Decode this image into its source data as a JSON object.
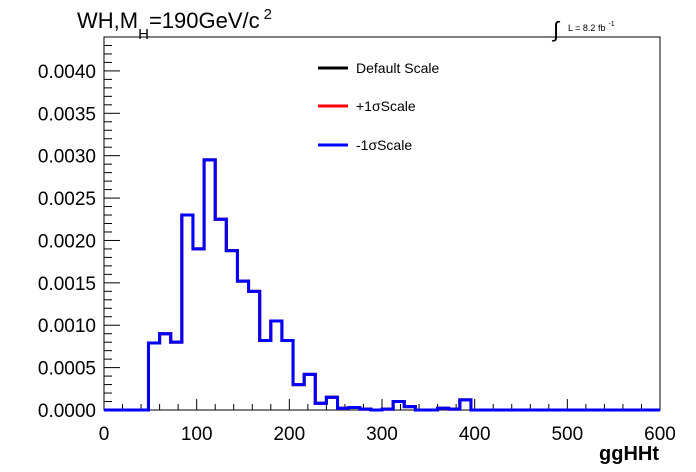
{
  "chart_data": {
    "type": "line",
    "title": "WH,M_H=190GeV/c^2",
    "title_parts": {
      "main": "WH,M",
      "sub": "H",
      "rest": "=190GeV/c",
      "sup": "2"
    },
    "lumi_label": {
      "integral": "∫",
      "text": "L = 8.2 fb",
      "sup": "-1"
    },
    "xlabel": "ggHHt",
    "ylabel": "",
    "xlim": [
      0,
      600
    ],
    "ylim": [
      0,
      0.0044
    ],
    "xticks": [
      0,
      100,
      200,
      300,
      400,
      500,
      600
    ],
    "xtick_labels": [
      "0",
      "100",
      "200",
      "300",
      "400",
      "500",
      "600"
    ],
    "yticks": [
      0,
      0.0005,
      0.001,
      0.0015,
      0.002,
      0.0025,
      0.003,
      0.0035,
      0.004
    ],
    "ytick_labels": [
      "0.0000",
      "0.0005",
      "0.0010",
      "0.0015",
      "0.0020",
      "0.0025",
      "0.0030",
      "0.0035",
      "0.0040"
    ],
    "grid": false,
    "legend_position": "top-center",
    "bin_edges": [
      0,
      12,
      24,
      36,
      48,
      60,
      72,
      84,
      96,
      108,
      120,
      132,
      144,
      156,
      168,
      180,
      192,
      204,
      216,
      228,
      240,
      252,
      264,
      276,
      288,
      300,
      312,
      324,
      336,
      348,
      360,
      372,
      384,
      396,
      408,
      420,
      432,
      444,
      456,
      468,
      480,
      492,
      504,
      516,
      528,
      540,
      552,
      564,
      576,
      588,
      600
    ],
    "series": [
      {
        "name": "Default Scale",
        "color": "#000000",
        "values": [
          0,
          0,
          0,
          0,
          0.00079,
          0.0009,
          0.0008,
          0.0023,
          0.0019,
          0.00295,
          0.00225,
          0.00188,
          0.00152,
          0.0014,
          0.00082,
          0.00105,
          0.00082,
          0.0003,
          0.00042,
          8e-05,
          0.00015,
          2e-05,
          3e-05,
          1e-05,
          0,
          1e-05,
          0.0001,
          4e-05,
          0,
          0,
          2e-05,
          1e-05,
          0.00012,
          0,
          0,
          0,
          0,
          0,
          0,
          0,
          0,
          0,
          0,
          0,
          0,
          0,
          0,
          0,
          0,
          0
        ]
      },
      {
        "name": "+1σScale",
        "color": "#ff0000",
        "values": [
          0,
          0,
          0,
          0,
          0.00079,
          0.0009,
          0.0008,
          0.0023,
          0.0019,
          0.00295,
          0.00225,
          0.00188,
          0.00152,
          0.0014,
          0.00082,
          0.00105,
          0.00082,
          0.0003,
          0.00042,
          8e-05,
          0.00015,
          2e-05,
          3e-05,
          1e-05,
          0,
          1e-05,
          0.0001,
          4e-05,
          0,
          0,
          2e-05,
          1e-05,
          0.00012,
          0,
          0,
          0,
          0,
          0,
          0,
          0,
          0,
          0,
          0,
          0,
          0,
          0,
          0,
          0,
          0,
          0
        ]
      },
      {
        "name": "-1σScale",
        "color": "#0000ff",
        "values": [
          0,
          0,
          0,
          0,
          0.00079,
          0.0009,
          0.0008,
          0.0023,
          0.0019,
          0.00295,
          0.00225,
          0.00188,
          0.00152,
          0.0014,
          0.00082,
          0.00105,
          0.00082,
          0.0003,
          0.00042,
          8e-05,
          0.00015,
          2e-05,
          3e-05,
          1e-05,
          0,
          1e-05,
          0.0001,
          4e-05,
          0,
          0,
          2e-05,
          1e-05,
          0.00012,
          0,
          0,
          0,
          0,
          0,
          0,
          0,
          0,
          0,
          0,
          0,
          0,
          0,
          0,
          0,
          0,
          0
        ]
      }
    ]
  }
}
